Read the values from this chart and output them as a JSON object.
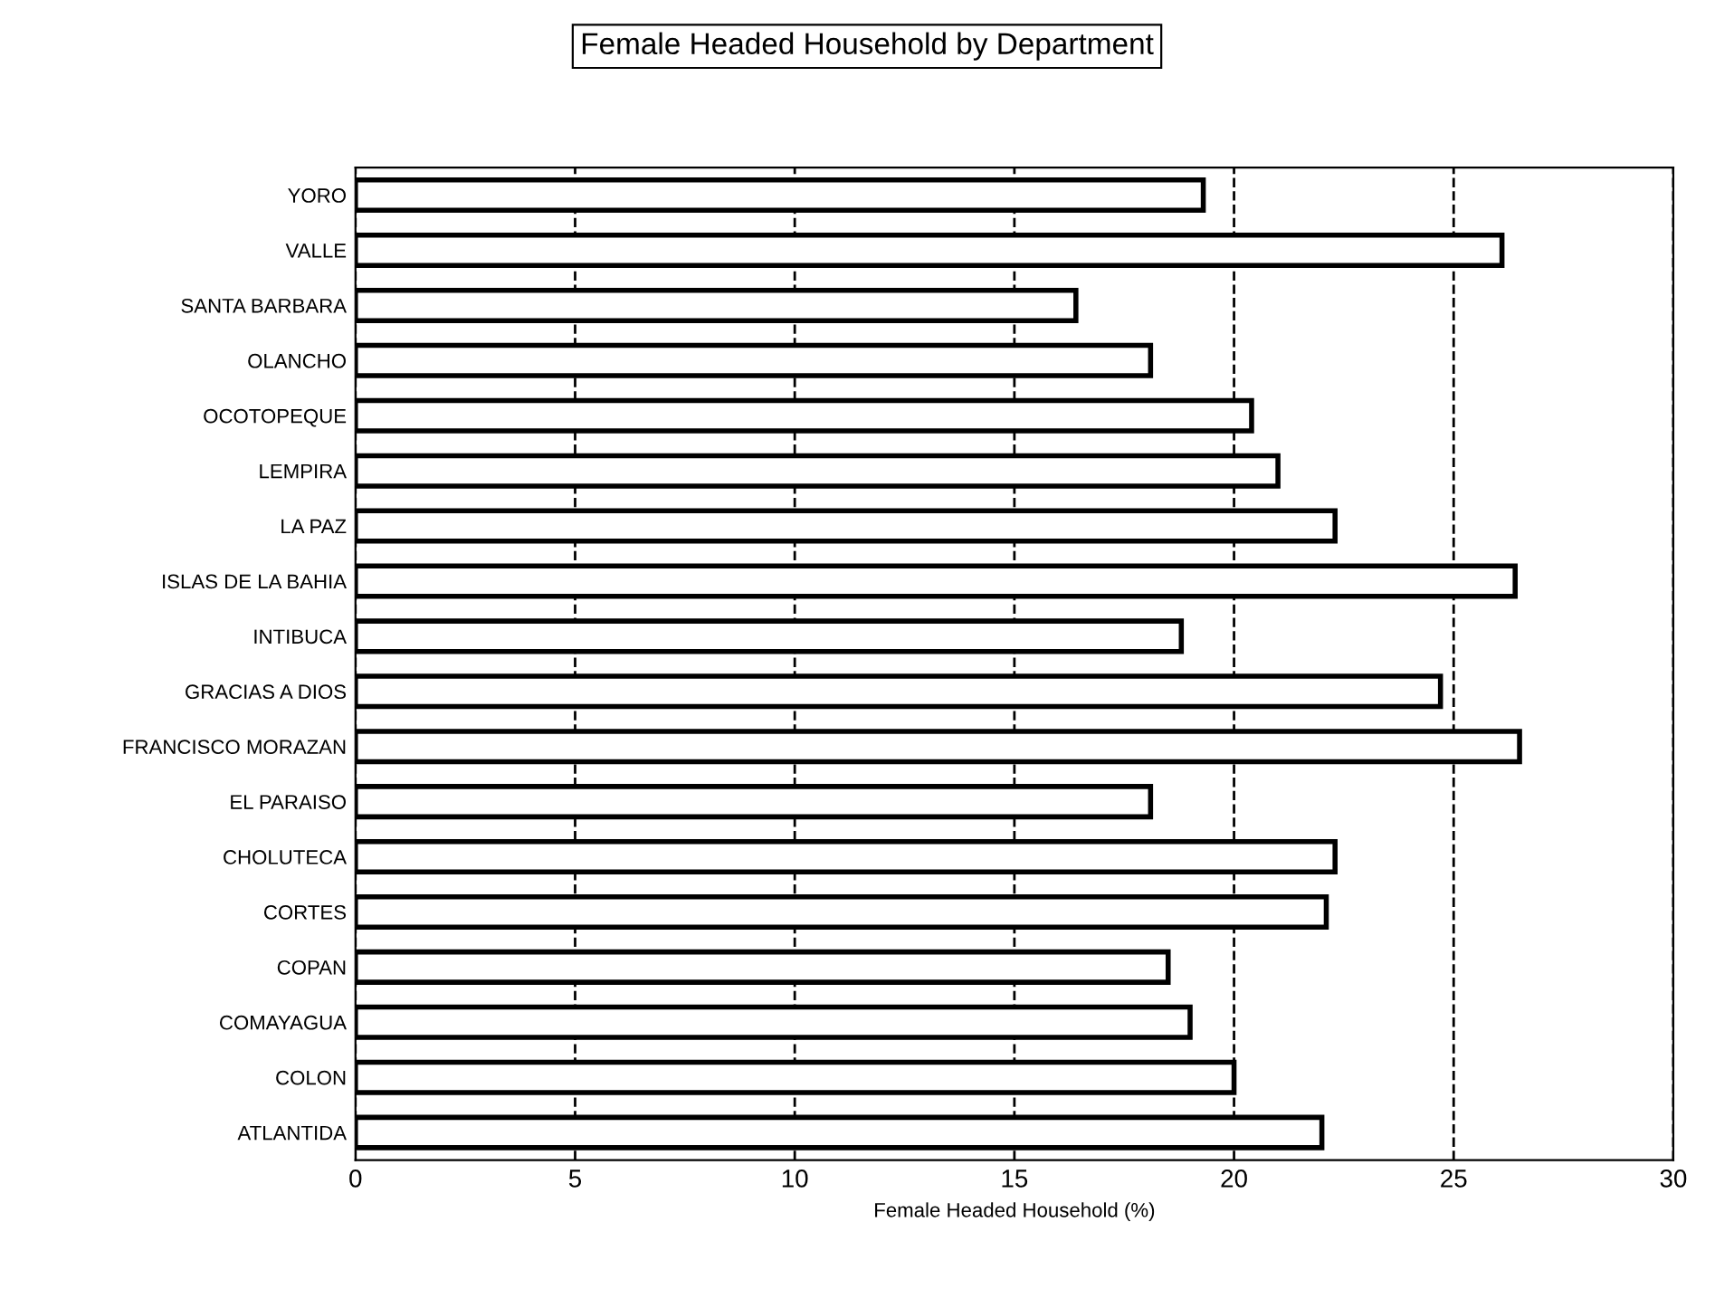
{
  "chart_data": {
    "type": "bar",
    "orientation": "horizontal",
    "title": "Female Headed Household by Department",
    "xlabel": "Female Headed Household (%)",
    "categories": [
      "YORO",
      "VALLE",
      "SANTA BARBARA",
      "OLANCHO",
      "OCOTOPEQUE",
      "LEMPIRA",
      "LA PAZ",
      "ISLAS DE LA BAHIA",
      "INTIBUCA",
      "GRACIAS A DIOS",
      "FRANCISCO MORAZAN",
      "EL PARAISO",
      "CHOLUTECA",
      "CORTES",
      "COPAN",
      "COMAYAGUA",
      "COLON",
      "ATLANTIDA"
    ],
    "values": [
      19.3,
      26.1,
      16.4,
      18.1,
      20.4,
      21.0,
      22.3,
      26.4,
      18.8,
      24.7,
      26.5,
      18.1,
      22.3,
      22.1,
      18.5,
      19.0,
      20.0,
      22.0
    ],
    "color": "#ffffff",
    "xlim": [
      0,
      30
    ],
    "xticks": [
      0,
      5,
      10,
      15,
      20,
      25,
      30
    ],
    "grid": "x",
    "line_style": "dashed"
  }
}
